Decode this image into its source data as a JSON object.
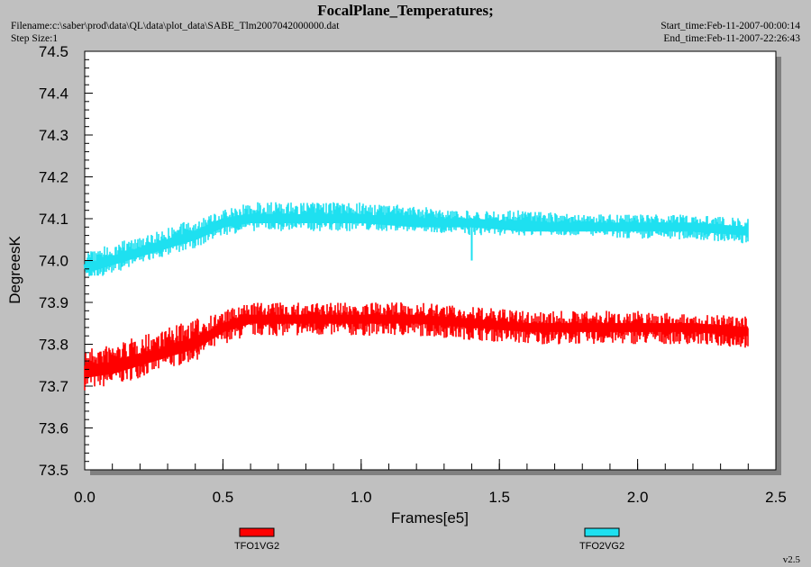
{
  "header": {
    "title": "FocalPlane_Temperatures;",
    "filename": "Filename:c:\\saber\\prod\\data\\QL\\data\\plot_data\\SABE_Tlm2007042000000.dat",
    "step_size": "Step Size:1",
    "start_time": "Start_time:Feb-11-2007-00:00:14",
    "end_time": "End_time:Feb-11-2007-22:26:43"
  },
  "version": "v2.5",
  "chart_data": {
    "type": "line",
    "title": "FocalPlane_Temperatures;",
    "xlabel": "Frames[e5]",
    "ylabel": "DegreesK",
    "xlim": [
      0.0,
      2.5
    ],
    "ylim": [
      73.5,
      74.5
    ],
    "x_ticks": [
      "0.0",
      "0.5",
      "1.0",
      "1.5",
      "2.0",
      "2.5"
    ],
    "y_ticks": [
      "73.5",
      "73.6",
      "73.7",
      "73.8",
      "73.9",
      "74.0",
      "74.1",
      "74.2",
      "74.3",
      "74.4",
      "74.5"
    ],
    "grid": false,
    "legend_position": "bottom",
    "series": [
      {
        "name": "TFO1VG2",
        "color": "#ff0000",
        "x": [
          0.0,
          0.1,
          0.2,
          0.3,
          0.4,
          0.5,
          0.6,
          0.8,
          1.0,
          1.2,
          1.4,
          1.6,
          1.8,
          2.0,
          2.2,
          2.4
        ],
        "y_mid": [
          73.73,
          73.74,
          73.76,
          73.78,
          73.8,
          73.84,
          73.86,
          73.86,
          73.86,
          73.86,
          73.85,
          73.84,
          73.84,
          73.84,
          73.84,
          73.83
        ],
        "y_low": [
          73.69,
          73.7,
          73.72,
          73.74,
          73.76,
          73.8,
          73.82,
          73.82,
          73.82,
          73.82,
          73.81,
          73.8,
          73.8,
          73.8,
          73.8,
          73.79
        ],
        "y_high": [
          73.79,
          73.8,
          73.82,
          73.84,
          73.86,
          73.88,
          73.9,
          73.9,
          73.9,
          73.9,
          73.89,
          73.88,
          73.88,
          73.88,
          73.87,
          73.87
        ]
      },
      {
        "name": "TFO2VG2",
        "color": "#1ee0f0",
        "x": [
          0.0,
          0.1,
          0.2,
          0.3,
          0.4,
          0.5,
          0.6,
          0.8,
          1.0,
          1.2,
          1.4,
          1.6,
          1.8,
          2.0,
          2.2,
          2.4
        ],
        "y_mid": [
          73.98,
          74.0,
          74.02,
          74.04,
          74.06,
          74.09,
          74.1,
          74.1,
          74.1,
          74.09,
          74.09,
          74.08,
          74.08,
          74.08,
          74.08,
          74.07
        ],
        "y_low": [
          73.95,
          73.97,
          73.99,
          74.01,
          74.03,
          74.06,
          74.07,
          74.07,
          74.07,
          74.07,
          74.06,
          74.06,
          74.06,
          74.05,
          74.05,
          74.04
        ],
        "y_high": [
          74.02,
          74.04,
          74.06,
          74.08,
          74.1,
          74.12,
          74.14,
          74.14,
          74.14,
          74.13,
          74.12,
          74.12,
          74.11,
          74.11,
          74.11,
          74.1
        ]
      }
    ],
    "annotations": [
      {
        "series": "TFO2VG2",
        "x": 1.4,
        "y": 74.0,
        "kind": "spike"
      }
    ]
  }
}
